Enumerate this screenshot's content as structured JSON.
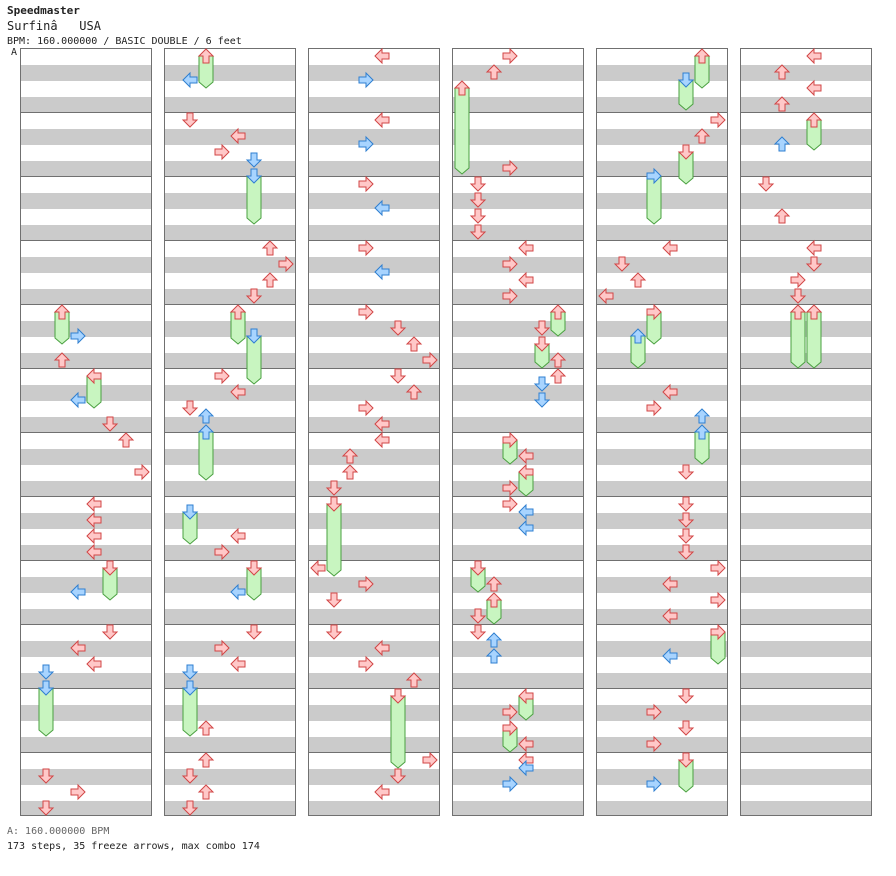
{
  "header": {
    "title": "Speedmaster",
    "artist": "Surfinâ   USA",
    "info": "BPM: 160.000000 / BASIC DOUBLE / 6 feet",
    "marker": "A"
  },
  "footer": {
    "bpm_line": "A: 160.000000 BPM",
    "stats": "173 steps, 35 freeze arrows, max combo 174"
  },
  "colors": {
    "red_fill": "#ffc8c8",
    "red_stroke": "#d24646",
    "blue_fill": "#a8d4ff",
    "blue_stroke": "#2f7fd0",
    "freeze_fill": "#c8f5c0",
    "freeze_stroke": "#4aa040"
  },
  "columns": 6,
  "measures_per_column": 12
}
